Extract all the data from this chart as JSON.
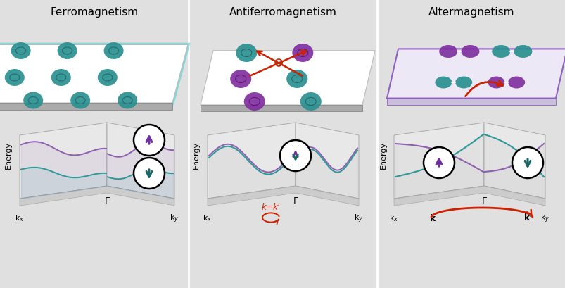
{
  "title_ferro": "Ferromagnetism",
  "title_antiferro": "Antiferromagnetism",
  "title_alter": "Altermagnetism",
  "bg_color": "#e0e0e0",
  "teal": "#2a9090",
  "purple": "#8030a0",
  "red": "#cc2200",
  "spin_purple": "#7030a0",
  "spin_teal": "#1a6868",
  "band_purple": "#9060b0",
  "band_teal": "#309898",
  "panel_face": "#e8e8e8",
  "panel_edge": "#aaaaaa",
  "base_face": "#cccccc",
  "slab_white": "#ffffff",
  "slab_gray": "#cccccc"
}
